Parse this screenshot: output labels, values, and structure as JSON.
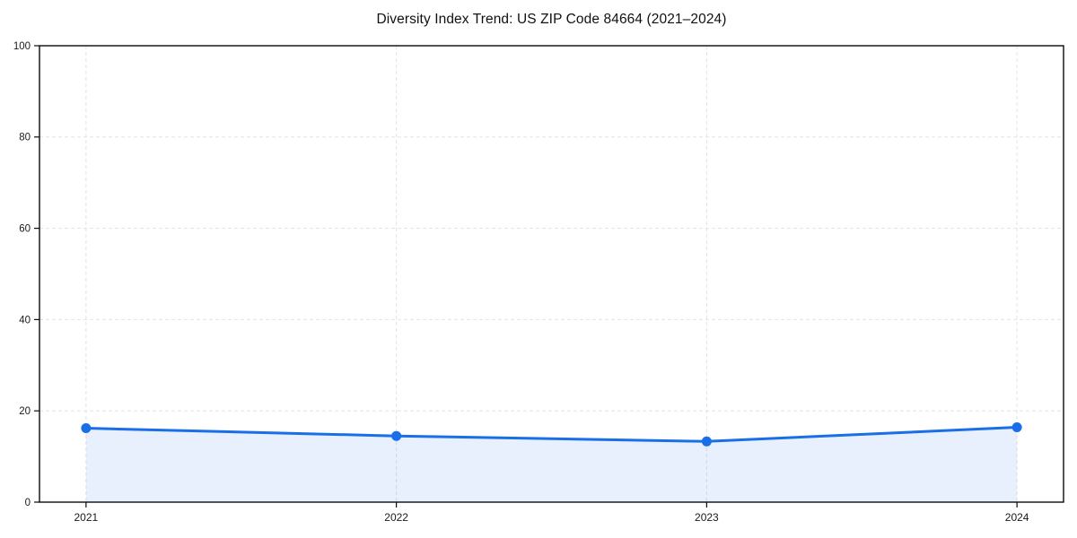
{
  "chart_data": {
    "type": "line",
    "title": "Diversity Index Trend: US ZIP Code 84664 (2021–2024)",
    "categories": [
      "2021",
      "2022",
      "2023",
      "2024"
    ],
    "series": [
      {
        "name": "Diversity Index",
        "values": [
          16.2,
          14.5,
          13.3,
          16.4
        ]
      }
    ],
    "xlabel": "",
    "ylabel": "",
    "ylim": [
      0,
      100
    ],
    "yticks": [
      0,
      20,
      40,
      60,
      80,
      100
    ],
    "grid": true,
    "grid_style": "dashed",
    "legend_position": "none",
    "area_fill": true,
    "marker": "circle",
    "colors": {
      "line": "#1a6fe8",
      "marker": "#1a6fe8",
      "area": "rgba(26, 111, 232, 0.10)",
      "grid": "#e3e3e3",
      "axis": "#0a0a0a",
      "tick_text": "#1a1a1a",
      "background": "#ffffff"
    }
  }
}
